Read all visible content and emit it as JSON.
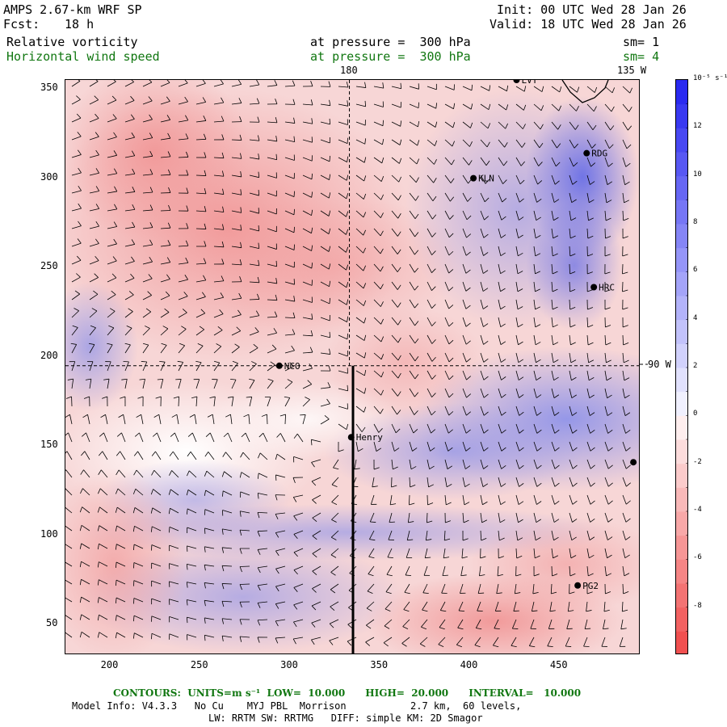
{
  "header": {
    "model": "AMPS 2.67-km WRF SP",
    "fcst_label": "Fcst:",
    "fcst_value": "18 h",
    "init": "Init: 00 UTC Wed 28 Jan 26",
    "valid": "Valid: 18 UTC Wed 28 Jan 26",
    "field1": "Relative vorticity",
    "field1_level": "at pressure =  300 hPa",
    "field1_sm": "sm= 1",
    "field2": "Horizontal wind speed",
    "field2_level": "at pressure =  300 hPa",
    "field2_sm": "sm= 4"
  },
  "map": {
    "lon_label_top_1": "180",
    "lon_label_top_2": "135 W",
    "lon_label_right": "90 W",
    "x_ticks": [
      "200",
      "250",
      "300",
      "350",
      "400",
      "450"
    ],
    "y_ticks": [
      "350",
      "300",
      "250",
      "200",
      "150",
      "100",
      "50"
    ],
    "x_range": [
      175,
      495
    ],
    "y_range": [
      33,
      355
    ],
    "stations": [
      {
        "name": "LVT",
        "x": 426,
        "y": 355
      },
      {
        "name": "RDG",
        "x": 465,
        "y": 314
      },
      {
        "name": "KLN",
        "x": 402,
        "y": 300
      },
      {
        "name": "HRC",
        "x": 469,
        "y": 239
      },
      {
        "name": "NCO",
        "x": 294,
        "y": 195
      },
      {
        "name": "Henry",
        "x": 334,
        "y": 155
      },
      {
        "name": "",
        "x": 491,
        "y": 141
      },
      {
        "name": "PG2",
        "x": 460,
        "y": 72
      }
    ],
    "cross_section_x": 335,
    "cross_section_y_range": [
      33,
      195
    ],
    "ref_meridian_x": 333,
    "ref_parallel_y": 195
  },
  "colorbar": {
    "unit_label": "10⁻⁵ s⁻¹",
    "ticks": [
      "12",
      "10",
      "8",
      "6",
      "4",
      "2",
      "0",
      "-2",
      "-4",
      "-6",
      "-8"
    ],
    "range": [
      -10,
      14
    ],
    "positive_color": "#2a2af0",
    "negative_color": "#f05050"
  },
  "footer": {
    "contours": "CONTOURS:  UNITS=m s⁻¹  LOW=  10.000      HIGH=  20.000      INTERVAL=   10.000",
    "model_info": "Model Info: V4.3.3   No Cu    MYJ PBL  Morrison           2.7 km,  60 levels,",
    "model_info2": "LW: RRTM SW: RRTMG   DIFF: simple KM: 2D Smagor"
  }
}
